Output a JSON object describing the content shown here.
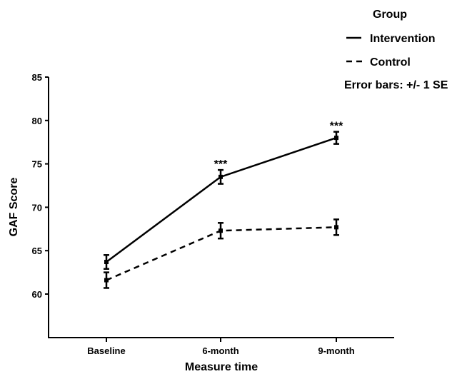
{
  "chart_data": {
    "type": "line",
    "categories": [
      "Baseline",
      "6-month",
      "9-month"
    ],
    "xlabel": "Measure time",
    "ylabel": "GAF Score",
    "ylim": [
      55,
      85
    ],
    "yticks": [
      60,
      65,
      70,
      75,
      80,
      85
    ],
    "series": [
      {
        "name": "Intervention",
        "line_style": "solid",
        "values": [
          63.7,
          73.5,
          78.0
        ],
        "se": [
          0.8,
          0.8,
          0.7
        ]
      },
      {
        "name": "Control",
        "line_style": "dashed",
        "values": [
          61.6,
          67.3,
          67.7
        ],
        "se": [
          0.9,
          0.9,
          0.9
        ]
      }
    ],
    "legend": {
      "title": "Group",
      "position": "top-right",
      "note": "Error bars: +/- 1 SE"
    },
    "annotations": [
      {
        "text": "***",
        "category": "6-month",
        "series": "Intervention"
      },
      {
        "text": "***",
        "category": "9-month",
        "series": "Intervention"
      }
    ],
    "grid": false
  }
}
